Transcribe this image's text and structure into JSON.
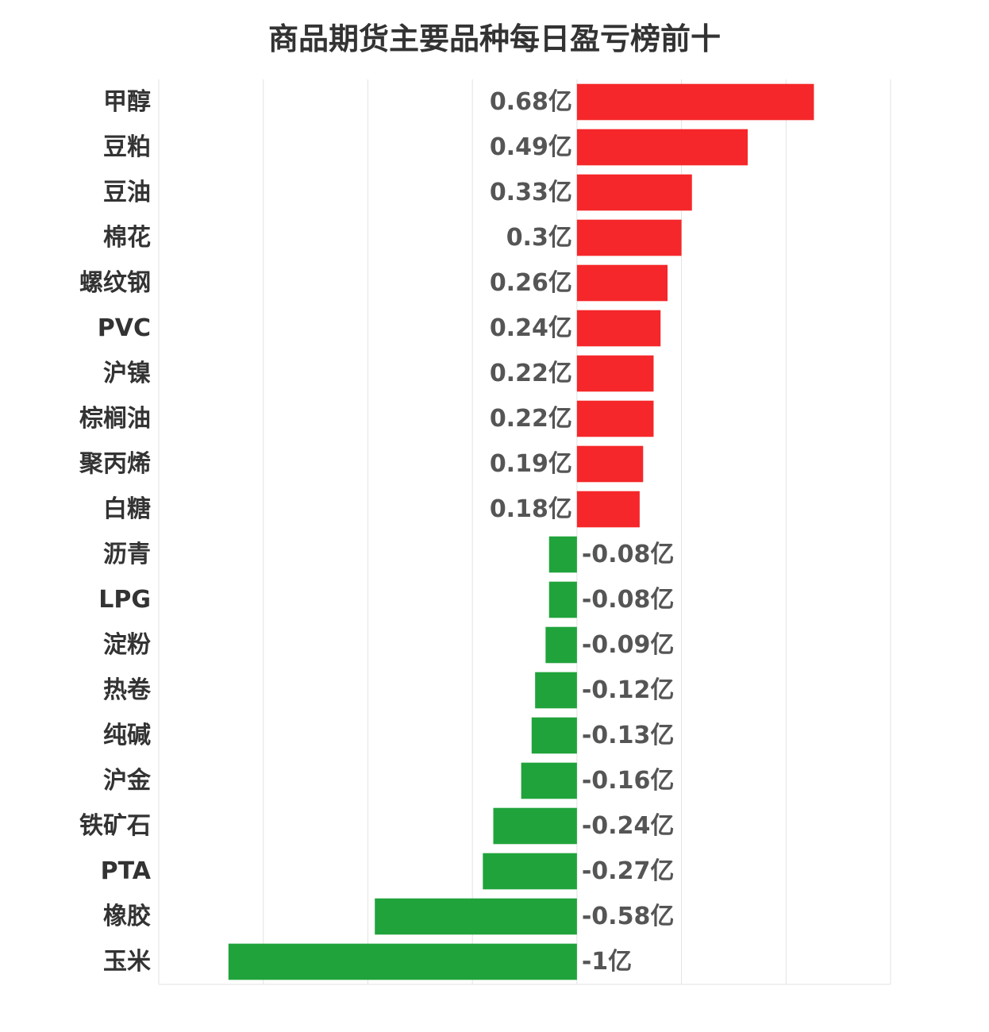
{
  "chart_data": {
    "type": "bar",
    "orientation": "horizontal",
    "title": "商品期货主要品种每日盈亏榜前十",
    "unit": "亿",
    "categories": [
      "甲醇",
      "豆粕",
      "豆油",
      "棉花",
      "螺纹钢",
      "PVC",
      "沪镍",
      "棕榈油",
      "聚丙烯",
      "白糖",
      "沥青",
      "LPG",
      "淀粉",
      "热卷",
      "纯碱",
      "沪金",
      "铁矿石",
      "PTA",
      "橡胶",
      "玉米"
    ],
    "values": [
      0.68,
      0.49,
      0.33,
      0.3,
      0.26,
      0.24,
      0.22,
      0.22,
      0.19,
      0.18,
      -0.08,
      -0.08,
      -0.09,
      -0.12,
      -0.13,
      -0.16,
      -0.24,
      -0.27,
      -0.58,
      -1
    ],
    "value_labels": [
      "0.68亿",
      "0.49亿",
      "0.33亿",
      "0.3亿",
      "0.26亿",
      "0.24亿",
      "0.22亿",
      "0.22亿",
      "0.19亿",
      "0.18亿",
      "-0.08亿",
      "-0.08亿",
      "-0.09亿",
      "-0.12亿",
      "-0.13亿",
      "-0.16亿",
      "-0.24亿",
      "-0.27亿",
      "-0.58亿",
      "-1亿"
    ],
    "xlim": [
      -1.2,
      0.9
    ],
    "grid": true,
    "colors": {
      "positive": "#f5272a",
      "negative": "#21a33c"
    }
  }
}
